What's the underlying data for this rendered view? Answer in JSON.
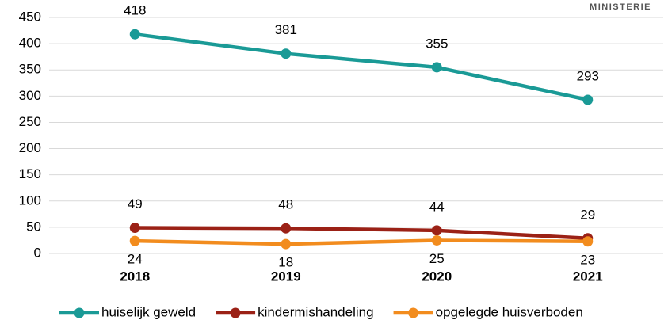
{
  "chart_data": {
    "type": "line",
    "annotation": "MINISTERIE",
    "categories": [
      "2018",
      "2019",
      "2020",
      "2021"
    ],
    "series": [
      {
        "name": "huiselijk geweld",
        "color": "#1a9a96",
        "values": [
          418,
          381,
          355,
          293
        ]
      },
      {
        "name": "kindermishandeling",
        "color": "#9b2116",
        "values": [
          49,
          48,
          44,
          29
        ]
      },
      {
        "name": "opgelegde huisverboden",
        "color": "#f28c1e",
        "values": [
          24,
          18,
          25,
          23
        ]
      }
    ],
    "ylim": [
      0,
      450
    ],
    "yticks": [
      0,
      50,
      100,
      150,
      200,
      250,
      300,
      350,
      400,
      450
    ],
    "grid": true,
    "legend": "bottom"
  }
}
